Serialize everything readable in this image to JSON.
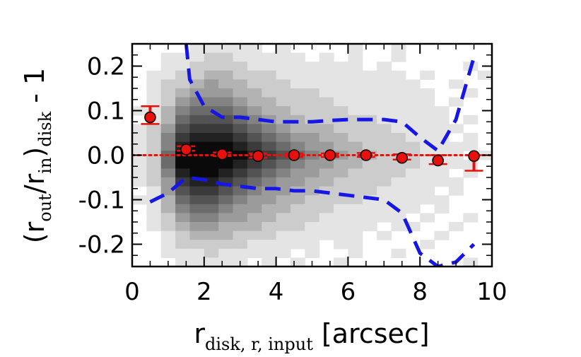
{
  "chart_data": {
    "type": "scatter",
    "title": "",
    "xlabel": {
      "main": "r",
      "subscript": "disk, r, input",
      "suffix": " [arcsec]"
    },
    "ylabel": {
      "open": "(r",
      "sub1": "out",
      "mid": "/r",
      "sub2": "in",
      "close": ")",
      "sub3": "disk",
      "suffix": " - 1"
    },
    "xlim": [
      0,
      10
    ],
    "ylim": [
      -0.25,
      0.25
    ],
    "x_ticks": [
      0,
      2,
      4,
      6,
      8,
      10
    ],
    "x_tick_labels": [
      "0",
      "2",
      "4",
      "6",
      "8",
      "10"
    ],
    "y_ticks": [
      -0.2,
      -0.1,
      0.0,
      0.1,
      0.2
    ],
    "y_tick_labels": [
      "-0.2",
      "-0.1",
      "0.0",
      "0.1",
      "0.2"
    ],
    "background": "grayscale 2D histogram of individual objects, densest near y=0 for x between 1 and 4",
    "medians": {
      "x": [
        0.5,
        1.5,
        2.5,
        3.5,
        4.5,
        5.5,
        6.5,
        7.5,
        8.5,
        9.5
      ],
      "y": [
        0.085,
        0.013,
        0.002,
        -0.002,
        0.0,
        0.0,
        0.0,
        -0.006,
        -0.012,
        -0.002
      ],
      "y_upper": [
        0.11,
        0.02,
        0.006,
        0.004,
        0.004,
        0.004,
        0.005,
        0.002,
        0.0,
        0.0
      ],
      "y_lower": [
        0.07,
        0.01,
        -0.002,
        -0.006,
        -0.004,
        -0.004,
        -0.004,
        -0.01,
        -0.02,
        -0.035
      ],
      "color": "#e8100c"
    },
    "reference_line": {
      "y": 0.0,
      "style": "dotted",
      "color": "#e8100c"
    },
    "upper_envelope": {
      "x": [
        1.5,
        1.6,
        2.0,
        2.5,
        3.0,
        3.5,
        4.0,
        4.5,
        5.0,
        5.5,
        6.0,
        6.5,
        7.0,
        7.5,
        8.0,
        8.5,
        9.0,
        9.5
      ],
      "y": [
        0.25,
        0.17,
        0.11,
        0.085,
        0.085,
        0.08,
        0.075,
        0.075,
        0.075,
        0.078,
        0.08,
        0.08,
        0.08,
        0.075,
        0.04,
        0.01,
        0.08,
        0.22
      ],
      "color": "#1616e6",
      "style": "dashed"
    },
    "lower_envelope": {
      "x": [
        0.5,
        1.0,
        1.5,
        2.0,
        2.5,
        3.0,
        3.5,
        4.0,
        4.5,
        5.0,
        5.5,
        6.0,
        6.5,
        7.0,
        7.5,
        8.0,
        8.5,
        9.0,
        9.5
      ],
      "y": [
        -0.105,
        -0.085,
        -0.05,
        -0.055,
        -0.065,
        -0.07,
        -0.075,
        -0.075,
        -0.08,
        -0.08,
        -0.085,
        -0.09,
        -0.095,
        -0.1,
        -0.13,
        -0.22,
        -0.25,
        -0.24,
        -0.2
      ],
      "color": "#1616e6",
      "style": "dashed"
    },
    "density": {
      "x_min": 0,
      "x_max": 10,
      "x_bins": 25,
      "y_min": -0.25,
      "y_max": 0.25,
      "y_bins": 25,
      "grid": [
        [
          0,
          0,
          0,
          0,
          1,
          1,
          1,
          1,
          1,
          0,
          1,
          0,
          0,
          0,
          0,
          1,
          0,
          0,
          1,
          0,
          0,
          0,
          0,
          0,
          0
        ],
        [
          0,
          0,
          1,
          1,
          1,
          2,
          2,
          1,
          1,
          1,
          1,
          1,
          0,
          1,
          0,
          1,
          0,
          0,
          1,
          0,
          0,
          0,
          0,
          0,
          0
        ],
        [
          0,
          0,
          1,
          1,
          2,
          2,
          2,
          2,
          1,
          1,
          1,
          1,
          1,
          1,
          1,
          1,
          0,
          1,
          0,
          0,
          0,
          0,
          0,
          1,
          0
        ],
        [
          0,
          1,
          1,
          2,
          2,
          3,
          3,
          2,
          2,
          2,
          1,
          1,
          1,
          1,
          1,
          1,
          1,
          1,
          1,
          0,
          1,
          0,
          0,
          0,
          1
        ],
        [
          0,
          1,
          2,
          2,
          3,
          4,
          3,
          3,
          2,
          2,
          2,
          1,
          1,
          1,
          1,
          1,
          1,
          1,
          1,
          1,
          0,
          0,
          1,
          0,
          0
        ],
        [
          0,
          1,
          2,
          3,
          4,
          4,
          4,
          3,
          3,
          2,
          2,
          2,
          2,
          1,
          1,
          1,
          1,
          1,
          1,
          1,
          1,
          0,
          0,
          1,
          0
        ],
        [
          0,
          1,
          2,
          4,
          5,
          5,
          5,
          4,
          3,
          3,
          2,
          2,
          2,
          2,
          1,
          1,
          1,
          1,
          1,
          1,
          1,
          0,
          1,
          0,
          0
        ],
        [
          1,
          1,
          3,
          5,
          6,
          6,
          6,
          5,
          4,
          3,
          3,
          2,
          2,
          2,
          2,
          1,
          1,
          1,
          1,
          1,
          1,
          1,
          0,
          0,
          0
        ],
        [
          0,
          1,
          3,
          6,
          7,
          7,
          7,
          6,
          5,
          4,
          3,
          3,
          2,
          2,
          2,
          2,
          2,
          1,
          1,
          1,
          1,
          1,
          0,
          1,
          0
        ],
        [
          1,
          2,
          4,
          7,
          8,
          8,
          8,
          7,
          6,
          5,
          4,
          3,
          3,
          3,
          2,
          2,
          2,
          2,
          1,
          1,
          1,
          1,
          1,
          0,
          0
        ],
        [
          1,
          2,
          5,
          8,
          9,
          9,
          9,
          8,
          7,
          6,
          5,
          4,
          4,
          3,
          3,
          2,
          2,
          2,
          2,
          1,
          1,
          1,
          0,
          1,
          0
        ],
        [
          1,
          2,
          5,
          9,
          10,
          10,
          10,
          9,
          8,
          7,
          6,
          5,
          4,
          4,
          3,
          3,
          2,
          2,
          2,
          2,
          1,
          1,
          1,
          1,
          0
        ],
        [
          1,
          2,
          6,
          10,
          10,
          10,
          10,
          10,
          9,
          8,
          7,
          6,
          5,
          4,
          4,
          3,
          3,
          2,
          2,
          2,
          1,
          1,
          1,
          0,
          1
        ],
        [
          1,
          2,
          6,
          10,
          10,
          10,
          10,
          9,
          8,
          7,
          6,
          5,
          4,
          4,
          3,
          3,
          2,
          2,
          2,
          2,
          1,
          1,
          1,
          1,
          0
        ],
        [
          1,
          2,
          5,
          9,
          10,
          10,
          9,
          8,
          7,
          6,
          5,
          4,
          4,
          3,
          3,
          2,
          2,
          2,
          2,
          1,
          1,
          1,
          0,
          1,
          0
        ],
        [
          1,
          2,
          4,
          8,
          9,
          9,
          8,
          7,
          6,
          5,
          4,
          4,
          3,
          3,
          2,
          2,
          2,
          2,
          1,
          1,
          1,
          1,
          1,
          0,
          0
        ],
        [
          0,
          1,
          4,
          7,
          8,
          8,
          7,
          6,
          5,
          4,
          4,
          3,
          3,
          2,
          2,
          2,
          2,
          1,
          1,
          1,
          1,
          0,
          1,
          0,
          0
        ],
        [
          1,
          1,
          3,
          6,
          7,
          7,
          6,
          5,
          4,
          4,
          3,
          3,
          2,
          2,
          2,
          2,
          1,
          1,
          1,
          1,
          1,
          1,
          0,
          0,
          0
        ],
        [
          0,
          1,
          3,
          5,
          6,
          6,
          5,
          4,
          4,
          3,
          3,
          2,
          2,
          2,
          1,
          1,
          1,
          1,
          1,
          1,
          0,
          1,
          0,
          0,
          0
        ],
        [
          0,
          1,
          2,
          4,
          5,
          5,
          4,
          4,
          3,
          3,
          2,
          2,
          2,
          1,
          1,
          1,
          1,
          1,
          1,
          0,
          1,
          0,
          0,
          1,
          0
        ],
        [
          0,
          1,
          2,
          3,
          4,
          4,
          3,
          3,
          3,
          2,
          2,
          2,
          1,
          1,
          1,
          1,
          1,
          0,
          1,
          1,
          0,
          0,
          1,
          0,
          0
        ],
        [
          0,
          0,
          1,
          2,
          3,
          3,
          3,
          2,
          2,
          2,
          1,
          1,
          1,
          1,
          1,
          1,
          0,
          1,
          0,
          0,
          0,
          1,
          0,
          0,
          0
        ],
        [
          0,
          0,
          1,
          2,
          2,
          2,
          2,
          2,
          1,
          1,
          1,
          1,
          1,
          0,
          1,
          1,
          0,
          0,
          0,
          0,
          1,
          0,
          0,
          0,
          0
        ],
        [
          0,
          0,
          1,
          1,
          1,
          2,
          1,
          1,
          1,
          1,
          1,
          0,
          1,
          0,
          0,
          1,
          0,
          0,
          1,
          0,
          0,
          0,
          0,
          0,
          0
        ],
        [
          0,
          0,
          0,
          1,
          1,
          1,
          1,
          1,
          0,
          1,
          0,
          1,
          0,
          0,
          1,
          0,
          0,
          0,
          0,
          0,
          0,
          0,
          0,
          1,
          0
        ]
      ]
    }
  }
}
